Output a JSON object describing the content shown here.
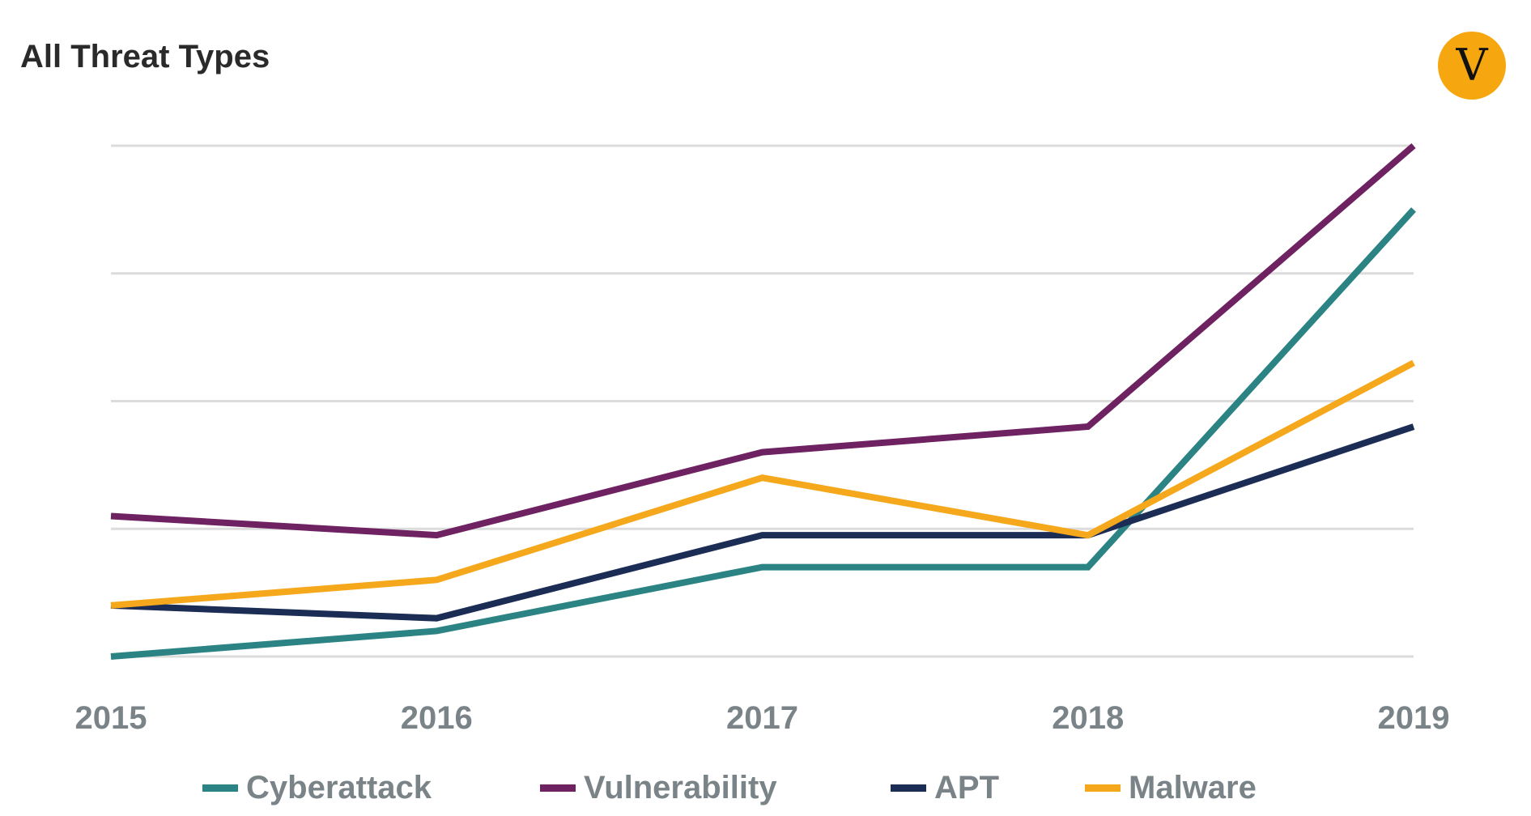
{
  "chart_data": {
    "type": "line",
    "title": "All Threat Types",
    "x": [
      "2015",
      "2016",
      "2017",
      "2018",
      "2019"
    ],
    "ylim": [
      0,
      4
    ],
    "grid": true,
    "legend_position": "bottom",
    "series": [
      {
        "name": "Cyberattack",
        "color": "#2b8384",
        "values": [
          0.0,
          0.2,
          0.7,
          0.7,
          3.5
        ]
      },
      {
        "name": "Vulnerability",
        "color": "#6e2261",
        "values": [
          1.1,
          0.95,
          1.6,
          1.8,
          4.0
        ]
      },
      {
        "name": "APT",
        "color": "#1b2d55",
        "values": [
          0.4,
          0.3,
          0.95,
          0.95,
          1.8
        ]
      },
      {
        "name": "Malware",
        "color": "#f5a81c",
        "values": [
          0.4,
          0.6,
          1.4,
          0.95,
          2.3
        ]
      }
    ]
  },
  "logo": {
    "letter": "V",
    "color": "#f6a70f"
  }
}
